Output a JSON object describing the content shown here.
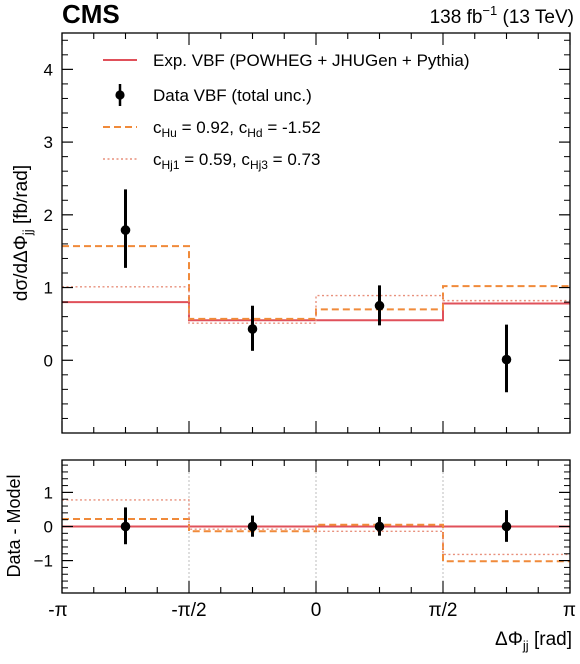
{
  "header": {
    "experiment": "CMS",
    "lumi_prefix": "138 fb",
    "lumi_sup": "−1",
    "lumi_suffix": " (13 TeV)"
  },
  "chart_data": [
    {
      "type": "line",
      "panel": "main",
      "ylabel_prefix": "dσ/dΔΦ",
      "ylabel_sub": "jj",
      "ylabel_suffix": " [fb/rad]",
      "ylim": [
        -1,
        4.5
      ],
      "yticks": [
        0,
        1,
        2,
        3,
        4
      ],
      "ytick_labels": [
        "0",
        "1",
        "2",
        "3",
        "4"
      ],
      "bin_edges": [
        -3.14159,
        -1.5708,
        0,
        1.5708,
        3.14159
      ],
      "series": [
        {
          "name": "Exp. VBF (POWHEG + JHUGen + Pythia)",
          "kind": "step",
          "color": "#e0505a",
          "dash": "solid",
          "values": [
            0.8,
            0.55,
            0.55,
            0.78
          ]
        },
        {
          "name": "Data VBF (total unc.)",
          "kind": "points",
          "color": "#000000",
          "x": [
            -2.35619,
            -0.785398,
            0.785398,
            2.35619
          ],
          "values": [
            1.79,
            0.43,
            0.75,
            0.01
          ],
          "err_low": [
            0.52,
            0.3,
            0.27,
            0.45
          ],
          "err_high": [
            0.56,
            0.32,
            0.28,
            0.48
          ]
        },
        {
          "name_parts": [
            "c",
            "Hu",
            " = 0.92, c",
            "Hd",
            " = -1.52"
          ],
          "kind": "step",
          "color": "#f08a3a",
          "dash": "dashed",
          "values": [
            1.57,
            0.57,
            0.7,
            1.02
          ]
        },
        {
          "name_parts": [
            "c",
            "Hj1",
            " = 0.59, c",
            "Hj3",
            " = 0.73"
          ],
          "kind": "step",
          "color": "#e8907c",
          "dash": "dotted",
          "values": [
            1.01,
            0.51,
            0.89,
            0.82
          ]
        }
      ],
      "legend_position": "top"
    },
    {
      "type": "line",
      "panel": "ratio",
      "ylabel": "Data - Model",
      "xlabel_prefix": "ΔΦ",
      "xlabel_sub": "jj",
      "xlabel_suffix": " [rad]",
      "ylim": [
        -1.95,
        1.95
      ],
      "yticks": [
        -1,
        0,
        1
      ],
      "ytick_labels": [
        "−1",
        "0",
        "1"
      ],
      "xtick_labels": [
        "-π",
        "-π/2",
        "0",
        "π/2",
        "π"
      ],
      "bin_edges": [
        -3.14159,
        -1.5708,
        0,
        1.5708,
        3.14159
      ],
      "series": [
        {
          "ref": "Exp. VBF",
          "kind": "step",
          "color": "#e0505a",
          "dash": "solid",
          "values": [
            0,
            0,
            0,
            0
          ]
        },
        {
          "ref": "Data VBF",
          "kind": "points",
          "color": "#000000",
          "x": [
            -2.35619,
            -0.785398,
            0.785398,
            2.35619
          ],
          "values": [
            0,
            0,
            0,
            0
          ],
          "err_low": [
            0.52,
            0.3,
            0.27,
            0.45
          ],
          "err_high": [
            0.56,
            0.32,
            0.28,
            0.48
          ]
        },
        {
          "ref": "cHu/cHd",
          "kind": "step",
          "color": "#f08a3a",
          "dash": "dashed",
          "values": [
            0.22,
            -0.14,
            0.05,
            -1.02
          ]
        },
        {
          "ref": "cHj1/cHj3",
          "kind": "step",
          "color": "#e8907c",
          "dash": "dotted",
          "values": [
            0.78,
            -0.08,
            -0.14,
            -0.82
          ]
        }
      ],
      "reference_line": 0
    }
  ]
}
